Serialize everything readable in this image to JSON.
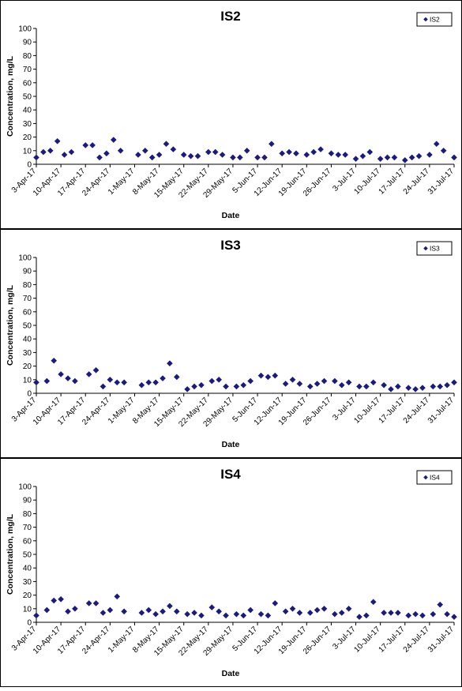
{
  "chart_data": [
    {
      "type": "scatter",
      "title": "IS2",
      "xlabel": "Date",
      "ylabel": "Concentration, mg/L",
      "ylim": [
        0,
        100
      ],
      "yticks": [
        0,
        10,
        20,
        30,
        40,
        50,
        60,
        70,
        80,
        90,
        100
      ],
      "xlim": [
        "3-Apr-17",
        "31-Jul-17"
      ],
      "xticks": [
        "3-Apr-17",
        "10-Apr-17",
        "17-Apr-17",
        "24-Apr-17",
        "1-May-17",
        "8-May-17",
        "15-May-17",
        "22-May-17",
        "29-May-17",
        "5-Jun-17",
        "12-Jun-17",
        "19-Jun-17",
        "26-Jun-17",
        "3-Jul-17",
        "10-Jul-17",
        "17-Jul-17",
        "24-Jul-17",
        "31-Jul-17"
      ],
      "legend": "top-right",
      "grid": false,
      "marker_color": "#1a1a80",
      "series": [
        {
          "name": "IS2",
          "points": [
            {
              "x": "3-Apr-17",
              "y": 5
            },
            {
              "x": "5-Apr-17",
              "y": 9
            },
            {
              "x": "7-Apr-17",
              "y": 10
            },
            {
              "x": "9-Apr-17",
              "y": 17
            },
            {
              "x": "11-Apr-17",
              "y": 7
            },
            {
              "x": "13-Apr-17",
              "y": 9
            },
            {
              "x": "17-Apr-17",
              "y": 14
            },
            {
              "x": "19-Apr-17",
              "y": 14
            },
            {
              "x": "21-Apr-17",
              "y": 5
            },
            {
              "x": "23-Apr-17",
              "y": 8
            },
            {
              "x": "25-Apr-17",
              "y": 18
            },
            {
              "x": "27-Apr-17",
              "y": 10
            },
            {
              "x": "2-May-17",
              "y": 7
            },
            {
              "x": "4-May-17",
              "y": 10
            },
            {
              "x": "6-May-17",
              "y": 5
            },
            {
              "x": "8-May-17",
              "y": 7
            },
            {
              "x": "10-May-17",
              "y": 15
            },
            {
              "x": "12-May-17",
              "y": 11
            },
            {
              "x": "15-May-17",
              "y": 7
            },
            {
              "x": "17-May-17",
              "y": 6
            },
            {
              "x": "19-May-17",
              "y": 6
            },
            {
              "x": "22-May-17",
              "y": 9
            },
            {
              "x": "24-May-17",
              "y": 9
            },
            {
              "x": "26-May-17",
              "y": 7
            },
            {
              "x": "29-May-17",
              "y": 5
            },
            {
              "x": "31-May-17",
              "y": 5
            },
            {
              "x": "2-Jun-17",
              "y": 10
            },
            {
              "x": "5-Jun-17",
              "y": 5
            },
            {
              "x": "7-Jun-17",
              "y": 5
            },
            {
              "x": "9-Jun-17",
              "y": 15
            },
            {
              "x": "12-Jun-17",
              "y": 8
            },
            {
              "x": "14-Jun-17",
              "y": 9
            },
            {
              "x": "16-Jun-17",
              "y": 8
            },
            {
              "x": "19-Jun-17",
              "y": 7
            },
            {
              "x": "21-Jun-17",
              "y": 9
            },
            {
              "x": "23-Jun-17",
              "y": 11
            },
            {
              "x": "26-Jun-17",
              "y": 8
            },
            {
              "x": "28-Jun-17",
              "y": 7
            },
            {
              "x": "30-Jun-17",
              "y": 7
            },
            {
              "x": "3-Jul-17",
              "y": 4
            },
            {
              "x": "5-Jul-17",
              "y": 6
            },
            {
              "x": "7-Jul-17",
              "y": 9
            },
            {
              "x": "10-Jul-17",
              "y": 4
            },
            {
              "x": "12-Jul-17",
              "y": 5
            },
            {
              "x": "14-Jul-17",
              "y": 5
            },
            {
              "x": "17-Jul-17",
              "y": 3
            },
            {
              "x": "19-Jul-17",
              "y": 5
            },
            {
              "x": "21-Jul-17",
              "y": 6
            },
            {
              "x": "24-Jul-17",
              "y": 7
            },
            {
              "x": "26-Jul-17",
              "y": 15
            },
            {
              "x": "28-Jul-17",
              "y": 10
            },
            {
              "x": "31-Jul-17",
              "y": 5
            }
          ]
        }
      ]
    },
    {
      "type": "scatter",
      "title": "IS3",
      "xlabel": "Date",
      "ylabel": "Concentration, mg/L",
      "ylim": [
        0,
        100
      ],
      "yticks": [
        0,
        10,
        20,
        30,
        40,
        50,
        60,
        70,
        80,
        90,
        100
      ],
      "xlim": [
        "3-Apr-17",
        "31-Jul-17"
      ],
      "xticks": [
        "3-Apr-17",
        "10-Apr-17",
        "17-Apr-17",
        "24-Apr-17",
        "1-May-17",
        "8-May-17",
        "15-May-17",
        "22-May-17",
        "29-May-17",
        "5-Jun-17",
        "12-Jun-17",
        "19-Jun-17",
        "26-Jun-17",
        "3-Jul-17",
        "10-Jul-17",
        "17-Jul-17",
        "24-Jul-17",
        "31-Jul-17"
      ],
      "legend": "top-right",
      "grid": false,
      "marker_color": "#1a1a80",
      "series": [
        {
          "name": "IS3",
          "points": [
            {
              "x": "3-Apr-17",
              "y": 8
            },
            {
              "x": "6-Apr-17",
              "y": 9
            },
            {
              "x": "8-Apr-17",
              "y": 24
            },
            {
              "x": "10-Apr-17",
              "y": 14
            },
            {
              "x": "12-Apr-17",
              "y": 11
            },
            {
              "x": "14-Apr-17",
              "y": 9
            },
            {
              "x": "18-Apr-17",
              "y": 14
            },
            {
              "x": "20-Apr-17",
              "y": 17
            },
            {
              "x": "22-Apr-17",
              "y": 5
            },
            {
              "x": "24-Apr-17",
              "y": 10
            },
            {
              "x": "26-Apr-17",
              "y": 8
            },
            {
              "x": "28-Apr-17",
              "y": 8
            },
            {
              "x": "3-May-17",
              "y": 6
            },
            {
              "x": "5-May-17",
              "y": 8
            },
            {
              "x": "7-May-17",
              "y": 8
            },
            {
              "x": "9-May-17",
              "y": 11
            },
            {
              "x": "11-May-17",
              "y": 22
            },
            {
              "x": "13-May-17",
              "y": 12
            },
            {
              "x": "16-May-17",
              "y": 3
            },
            {
              "x": "18-May-17",
              "y": 5
            },
            {
              "x": "20-May-17",
              "y": 6
            },
            {
              "x": "23-May-17",
              "y": 9
            },
            {
              "x": "25-May-17",
              "y": 10
            },
            {
              "x": "27-May-17",
              "y": 5
            },
            {
              "x": "30-May-17",
              "y": 5
            },
            {
              "x": "1-Jun-17",
              "y": 6
            },
            {
              "x": "3-Jun-17",
              "y": 9
            },
            {
              "x": "6-Jun-17",
              "y": 13
            },
            {
              "x": "8-Jun-17",
              "y": 12
            },
            {
              "x": "10-Jun-17",
              "y": 13
            },
            {
              "x": "13-Jun-17",
              "y": 7
            },
            {
              "x": "15-Jun-17",
              "y": 10
            },
            {
              "x": "17-Jun-17",
              "y": 7
            },
            {
              "x": "20-Jun-17",
              "y": 5
            },
            {
              "x": "22-Jun-17",
              "y": 7
            },
            {
              "x": "24-Jun-17",
              "y": 9
            },
            {
              "x": "27-Jun-17",
              "y": 9
            },
            {
              "x": "29-Jun-17",
              "y": 6
            },
            {
              "x": "1-Jul-17",
              "y": 8
            },
            {
              "x": "4-Jul-17",
              "y": 5
            },
            {
              "x": "6-Jul-17",
              "y": 5
            },
            {
              "x": "8-Jul-17",
              "y": 8
            },
            {
              "x": "11-Jul-17",
              "y": 6
            },
            {
              "x": "13-Jul-17",
              "y": 3
            },
            {
              "x": "15-Jul-17",
              "y": 5
            },
            {
              "x": "18-Jul-17",
              "y": 4
            },
            {
              "x": "20-Jul-17",
              "y": 3
            },
            {
              "x": "22-Jul-17",
              "y": 4
            },
            {
              "x": "25-Jul-17",
              "y": 5
            },
            {
              "x": "27-Jul-17",
              "y": 5
            },
            {
              "x": "29-Jul-17",
              "y": 6
            },
            {
              "x": "31-Jul-17",
              "y": 8
            }
          ]
        }
      ]
    },
    {
      "type": "scatter",
      "title": "IS4",
      "xlabel": "Date",
      "ylabel": "Concentration, mg/L",
      "ylim": [
        0,
        100
      ],
      "yticks": [
        0,
        10,
        20,
        30,
        40,
        50,
        60,
        70,
        80,
        90,
        100
      ],
      "xlim": [
        "3-Apr-17",
        "31-Jul-17"
      ],
      "xticks": [
        "3-Apr-17",
        "10-Apr-17",
        "17-Apr-17",
        "24-Apr-17",
        "1-May-17",
        "8-May-17",
        "15-May-17",
        "22-May-17",
        "29-May-17",
        "5-Jun-17",
        "12-Jun-17",
        "19-Jun-17",
        "26-Jun-17",
        "3-Jul-17",
        "10-Jul-17",
        "17-Jul-17",
        "24-Jul-17",
        "31-Jul-17"
      ],
      "legend": "top-right",
      "grid": false,
      "marker_color": "#1a1a80",
      "series": [
        {
          "name": "IS4",
          "points": [
            {
              "x": "3-Apr-17",
              "y": 5
            },
            {
              "x": "6-Apr-17",
              "y": 9
            },
            {
              "x": "8-Apr-17",
              "y": 16
            },
            {
              "x": "10-Apr-17",
              "y": 17
            },
            {
              "x": "12-Apr-17",
              "y": 8
            },
            {
              "x": "14-Apr-17",
              "y": 10
            },
            {
              "x": "18-Apr-17",
              "y": 14
            },
            {
              "x": "20-Apr-17",
              "y": 14
            },
            {
              "x": "22-Apr-17",
              "y": 7
            },
            {
              "x": "24-Apr-17",
              "y": 9
            },
            {
              "x": "26-Apr-17",
              "y": 19
            },
            {
              "x": "28-Apr-17",
              "y": 8
            },
            {
              "x": "3-May-17",
              "y": 7
            },
            {
              "x": "5-May-17",
              "y": 9
            },
            {
              "x": "7-May-17",
              "y": 6
            },
            {
              "x": "9-May-17",
              "y": 8
            },
            {
              "x": "11-May-17",
              "y": 12
            },
            {
              "x": "13-May-17",
              "y": 8
            },
            {
              "x": "16-May-17",
              "y": 6
            },
            {
              "x": "18-May-17",
              "y": 7
            },
            {
              "x": "20-May-17",
              "y": 5
            },
            {
              "x": "23-May-17",
              "y": 11
            },
            {
              "x": "25-May-17",
              "y": 8
            },
            {
              "x": "27-May-17",
              "y": 5
            },
            {
              "x": "30-May-17",
              "y": 6
            },
            {
              "x": "1-Jun-17",
              "y": 5
            },
            {
              "x": "3-Jun-17",
              "y": 9
            },
            {
              "x": "6-Jun-17",
              "y": 6
            },
            {
              "x": "8-Jun-17",
              "y": 5
            },
            {
              "x": "10-Jun-17",
              "y": 14
            },
            {
              "x": "13-Jun-17",
              "y": 8
            },
            {
              "x": "15-Jun-17",
              "y": 10
            },
            {
              "x": "17-Jun-17",
              "y": 7
            },
            {
              "x": "20-Jun-17",
              "y": 7
            },
            {
              "x": "22-Jun-17",
              "y": 9
            },
            {
              "x": "24-Jun-17",
              "y": 10
            },
            {
              "x": "27-Jun-17",
              "y": 6
            },
            {
              "x": "29-Jun-17",
              "y": 7
            },
            {
              "x": "1-Jul-17",
              "y": 10
            },
            {
              "x": "4-Jul-17",
              "y": 4
            },
            {
              "x": "6-Jul-17",
              "y": 5
            },
            {
              "x": "8-Jul-17",
              "y": 15
            },
            {
              "x": "11-Jul-17",
              "y": 7
            },
            {
              "x": "13-Jul-17",
              "y": 7
            },
            {
              "x": "15-Jul-17",
              "y": 7
            },
            {
              "x": "18-Jul-17",
              "y": 5
            },
            {
              "x": "20-Jul-17",
              "y": 6
            },
            {
              "x": "22-Jul-17",
              "y": 5
            },
            {
              "x": "25-Jul-17",
              "y": 6
            },
            {
              "x": "27-Jul-17",
              "y": 13
            },
            {
              "x": "29-Jul-17",
              "y": 6
            },
            {
              "x": "31-Jul-17",
              "y": 4
            }
          ]
        }
      ]
    }
  ]
}
